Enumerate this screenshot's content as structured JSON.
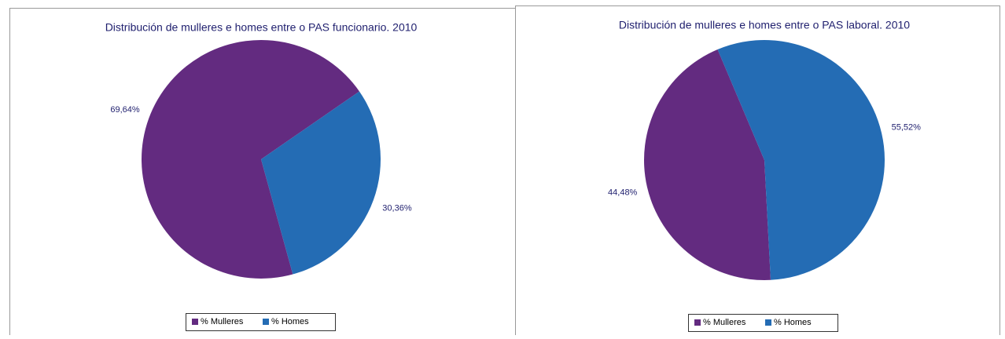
{
  "chart_data": [
    {
      "type": "pie",
      "title": "Distribución de mulleres e homes entre o PAS funcionario. 2010",
      "categories": [
        "% Mulleres",
        "% Homes"
      ],
      "values": [
        69.64,
        30.36
      ],
      "value_labels": [
        "69,64%",
        "30,36%"
      ],
      "colors": [
        "#632b80",
        "#246cb4"
      ],
      "legend": "bottom"
    },
    {
      "type": "pie",
      "title": "Distribución de mulleres e homes entre o PAS laboral. 2010",
      "categories": [
        "% Mulleres",
        "% Homes"
      ],
      "values": [
        44.48,
        55.52
      ],
      "value_labels": [
        "44,48%",
        "55,52%"
      ],
      "colors": [
        "#632b80",
        "#246cb4"
      ],
      "legend": "bottom"
    }
  ]
}
